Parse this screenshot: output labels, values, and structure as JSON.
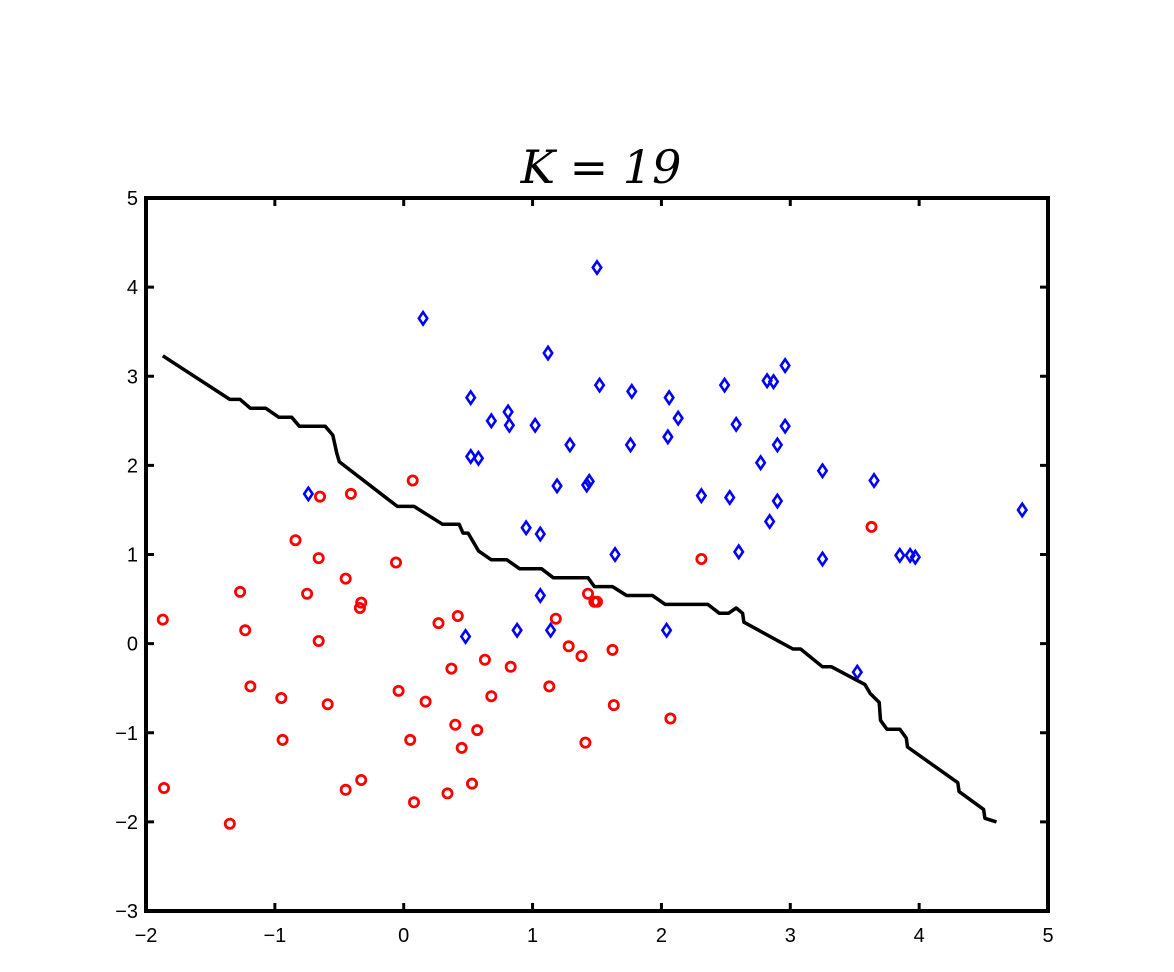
{
  "chart_data": {
    "type": "scatter",
    "title": "K = 19",
    "xlabel": "",
    "ylabel": "",
    "xlim": [
      -2,
      5
    ],
    "ylim": [
      -3,
      5
    ],
    "xticks": [
      -2,
      -1,
      0,
      1,
      2,
      3,
      4,
      5
    ],
    "yticks": [
      -3,
      -2,
      -1,
      0,
      1,
      2,
      3,
      4,
      5
    ],
    "xtick_labels": [
      "−2",
      "−1",
      "0",
      "1",
      "2",
      "3",
      "4",
      "5"
    ],
    "ytick_labels": [
      "−3",
      "−2",
      "−1",
      "0",
      "1",
      "2",
      "3",
      "4",
      "5"
    ],
    "grid": false,
    "series": [
      {
        "name": "class-red",
        "marker": "circle",
        "color": "#ff0000",
        "points": [
          [
            -1.87,
            0.27
          ],
          [
            -1.86,
            -1.62
          ],
          [
            -1.35,
            -2.02
          ],
          [
            -1.27,
            0.58
          ],
          [
            -1.23,
            0.15
          ],
          [
            -1.19,
            -0.48
          ],
          [
            -0.95,
            -0.61
          ],
          [
            -0.94,
            -1.08
          ],
          [
            -0.84,
            1.16
          ],
          [
            -0.75,
            0.56
          ],
          [
            -0.66,
            0.96
          ],
          [
            -0.66,
            0.03
          ],
          [
            -0.65,
            1.65
          ],
          [
            -0.59,
            -0.68
          ],
          [
            -0.45,
            0.73
          ],
          [
            -0.45,
            -1.64
          ],
          [
            -0.41,
            1.68
          ],
          [
            -0.34,
            0.4
          ],
          [
            -0.33,
            0.46
          ],
          [
            -0.33,
            -1.53
          ],
          [
            -0.06,
            0.91
          ],
          [
            -0.04,
            -0.53
          ],
          [
            0.05,
            -1.08
          ],
          [
            0.07,
            1.83
          ],
          [
            0.08,
            -1.78
          ],
          [
            0.17,
            -0.65
          ],
          [
            0.27,
            0.23
          ],
          [
            0.34,
            -1.68
          ],
          [
            0.37,
            -0.28
          ],
          [
            0.4,
            -0.91
          ],
          [
            0.42,
            0.31
          ],
          [
            0.45,
            -1.17
          ],
          [
            0.53,
            -1.57
          ],
          [
            0.57,
            -0.97
          ],
          [
            0.63,
            -0.18
          ],
          [
            0.68,
            -0.59
          ],
          [
            0.83,
            -0.26
          ],
          [
            1.13,
            -0.48
          ],
          [
            1.18,
            0.28
          ],
          [
            1.28,
            -0.03
          ],
          [
            1.38,
            -0.14
          ],
          [
            1.41,
            -1.11
          ],
          [
            1.43,
            0.56
          ],
          [
            1.48,
            0.47
          ],
          [
            1.5,
            0.47
          ],
          [
            1.62,
            -0.07
          ],
          [
            1.63,
            -0.69
          ],
          [
            2.07,
            -0.84
          ],
          [
            2.31,
            0.95
          ],
          [
            3.63,
            1.31
          ]
        ]
      },
      {
        "name": "class-blue",
        "marker": "diamond",
        "color": "#0000ff",
        "points": [
          [
            -0.74,
            1.68
          ],
          [
            0.15,
            3.65
          ],
          [
            0.48,
            0.08
          ],
          [
            0.52,
            2.1
          ],
          [
            0.52,
            2.76
          ],
          [
            0.58,
            2.08
          ],
          [
            0.68,
            2.5
          ],
          [
            0.81,
            2.6
          ],
          [
            0.82,
            2.45
          ],
          [
            0.88,
            0.15
          ],
          [
            0.95,
            1.3
          ],
          [
            1.02,
            2.45
          ],
          [
            1.06,
            1.23
          ],
          [
            1.06,
            0.54
          ],
          [
            1.12,
            3.26
          ],
          [
            1.14,
            0.15
          ],
          [
            1.19,
            1.77
          ],
          [
            1.29,
            2.23
          ],
          [
            1.42,
            1.78
          ],
          [
            1.44,
            1.82
          ],
          [
            1.5,
            4.22
          ],
          [
            1.52,
            2.9
          ],
          [
            1.64,
            1.0
          ],
          [
            1.76,
            2.23
          ],
          [
            1.77,
            2.83
          ],
          [
            2.04,
            0.15
          ],
          [
            2.05,
            2.32
          ],
          [
            2.06,
            2.76
          ],
          [
            2.13,
            2.53
          ],
          [
            2.31,
            1.66
          ],
          [
            2.49,
            2.9
          ],
          [
            2.53,
            1.64
          ],
          [
            2.58,
            2.46
          ],
          [
            2.6,
            1.03
          ],
          [
            2.77,
            2.03
          ],
          [
            2.82,
            2.95
          ],
          [
            2.84,
            1.37
          ],
          [
            2.87,
            2.94
          ],
          [
            2.9,
            2.23
          ],
          [
            2.9,
            1.6
          ],
          [
            2.96,
            3.12
          ],
          [
            2.96,
            2.44
          ],
          [
            3.25,
            1.94
          ],
          [
            3.25,
            0.95
          ],
          [
            3.52,
            -0.32
          ],
          [
            3.65,
            1.83
          ],
          [
            3.85,
            0.99
          ],
          [
            3.93,
            0.99
          ],
          [
            3.97,
            0.97
          ],
          [
            4.8,
            1.5
          ]
        ]
      },
      {
        "name": "decision-boundary",
        "marker": "line",
        "color": "#000000",
        "points": [
          [
            -1.87,
            3.23
          ],
          [
            -1.35,
            2.74
          ],
          [
            -1.27,
            2.74
          ],
          [
            -1.19,
            2.64
          ],
          [
            -1.07,
            2.64
          ],
          [
            -0.97,
            2.54
          ],
          [
            -0.87,
            2.54
          ],
          [
            -0.81,
            2.44
          ],
          [
            -0.61,
            2.44
          ],
          [
            -0.55,
            2.34
          ],
          [
            -0.52,
            2.14
          ],
          [
            -0.5,
            2.04
          ],
          [
            -0.05,
            1.54
          ],
          [
            0.08,
            1.54
          ],
          [
            0.3,
            1.34
          ],
          [
            0.43,
            1.34
          ],
          [
            0.46,
            1.24
          ],
          [
            0.5,
            1.24
          ],
          [
            0.58,
            1.04
          ],
          [
            0.68,
            0.94
          ],
          [
            0.8,
            0.94
          ],
          [
            0.9,
            0.84
          ],
          [
            1.07,
            0.84
          ],
          [
            1.16,
            0.74
          ],
          [
            1.43,
            0.74
          ],
          [
            1.48,
            0.64
          ],
          [
            1.62,
            0.64
          ],
          [
            1.73,
            0.54
          ],
          [
            1.93,
            0.54
          ],
          [
            2.03,
            0.44
          ],
          [
            2.36,
            0.44
          ],
          [
            2.45,
            0.34
          ],
          [
            2.52,
            0.34
          ],
          [
            2.58,
            0.4
          ],
          [
            2.63,
            0.34
          ],
          [
            2.64,
            0.24
          ],
          [
            3.02,
            -0.06
          ],
          [
            3.08,
            -0.06
          ],
          [
            3.25,
            -0.26
          ],
          [
            3.32,
            -0.26
          ],
          [
            3.58,
            -0.46
          ],
          [
            3.62,
            -0.56
          ],
          [
            3.69,
            -0.66
          ],
          [
            3.7,
            -0.86
          ],
          [
            3.75,
            -0.96
          ],
          [
            3.85,
            -0.96
          ],
          [
            3.9,
            -1.06
          ],
          [
            3.91,
            -1.16
          ],
          [
            4.3,
            -1.56
          ],
          [
            4.31,
            -1.66
          ],
          [
            4.5,
            -1.86
          ],
          [
            4.51,
            -1.96
          ],
          [
            4.6,
            -2.0
          ]
        ]
      }
    ]
  }
}
